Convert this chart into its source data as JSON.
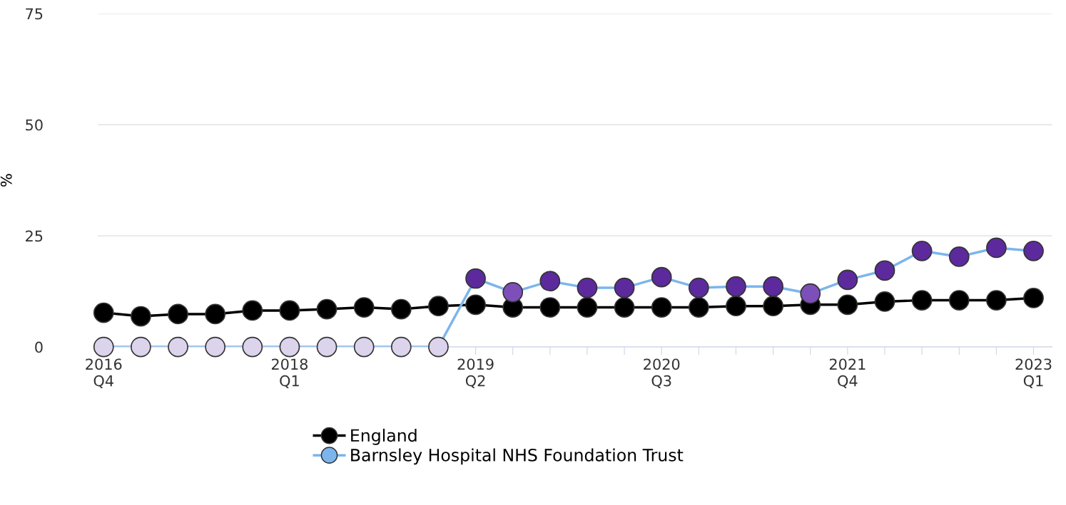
{
  "chart_data": {
    "type": "line",
    "ylabel": "%",
    "categories": [
      "2016\nQ4",
      null,
      null,
      null,
      null,
      "2018\nQ1",
      null,
      null,
      null,
      null,
      "2019\nQ2",
      null,
      null,
      null,
      null,
      "2020\nQ3",
      null,
      null,
      null,
      null,
      "2021\nQ4",
      null,
      null,
      null,
      null,
      "2023\nQ1"
    ],
    "series": [
      {
        "name": "England",
        "color": "#000000",
        "values": [
          7.7,
          6.9,
          7.4,
          7.4,
          8.2,
          8.2,
          8.5,
          8.9,
          8.5,
          9.2,
          9.5,
          8.9,
          8.9,
          8.9,
          8.9,
          8.9,
          8.9,
          9.2,
          9.2,
          9.5,
          9.5,
          10.2,
          10.5,
          10.5,
          10.5,
          11
        ]
      },
      {
        "name": "Barnsley Hospital NHS Foundation Trust",
        "color": "#7cb5ec",
        "values": [
          0,
          0,
          0,
          0,
          0,
          0,
          0,
          0,
          0,
          0,
          15.4,
          12.3,
          14.8,
          13.3,
          13.3,
          15.7,
          13.3,
          13.6,
          13.6,
          12,
          15.1,
          17.2,
          21.6,
          20.3,
          22.3,
          21.6
        ],
        "colors": [
          "#dcd3ec",
          "#dcd3ec",
          "#dcd3ec",
          "#dcd3ec",
          "#dcd3ec",
          "#dcd3ec",
          "#dcd3ec",
          "#dcd3ec",
          "#dcd3ec",
          "#dcd3ec",
          "#5c2a9d",
          "#7d4fb8",
          "#5c2a9d",
          "#5c2a9d",
          "#5c2a9d",
          "#5c2a9d",
          "#5c2a9d",
          "#5c2a9d",
          "#5c2a9d",
          "#7d4fb8",
          "#5c2a9d",
          "#5c2a9d",
          "#5c2a9d",
          "#5c2a9d",
          "#5c2a9d",
          "#5c2a9d"
        ]
      }
    ],
    "ylim": [
      0,
      75
    ],
    "yticks": [
      0,
      25,
      50,
      75
    ],
    "grid": "y",
    "legend": "bottom",
    "marker": "circle",
    "line_style": "solid"
  }
}
